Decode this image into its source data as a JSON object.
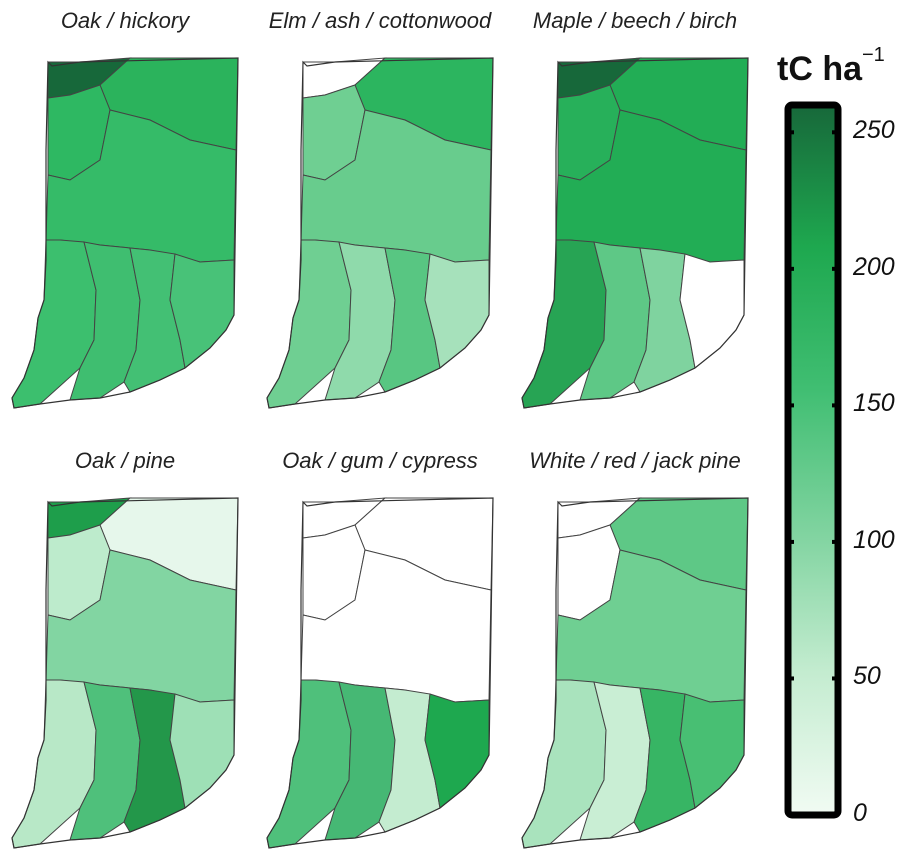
{
  "chart_data": {
    "type": "choropleth-map",
    "region": "Indiana",
    "colorbar": {
      "title": "tC ha",
      "title_superscript": "−1",
      "range": [
        0,
        260
      ],
      "ticks": [
        0,
        50,
        100,
        150,
        200,
        250
      ],
      "tick_labels": [
        "0",
        "50",
        "100",
        "150",
        "200",
        "250"
      ],
      "colors": [
        "#f1fbf3",
        "#c4ecd0",
        "#7fd39f",
        "#40be72",
        "#1ea84f",
        "#17683a"
      ]
    },
    "panels": [
      {
        "title": "Oak / hickory"
      },
      {
        "title": "Elm / ash / cottonwood"
      },
      {
        "title": "Maple / beech / birch"
      },
      {
        "title": "Oak / pine"
      },
      {
        "title": "Oak / gum / cypress"
      },
      {
        "title": "White / red / jack pine"
      }
    ]
  }
}
